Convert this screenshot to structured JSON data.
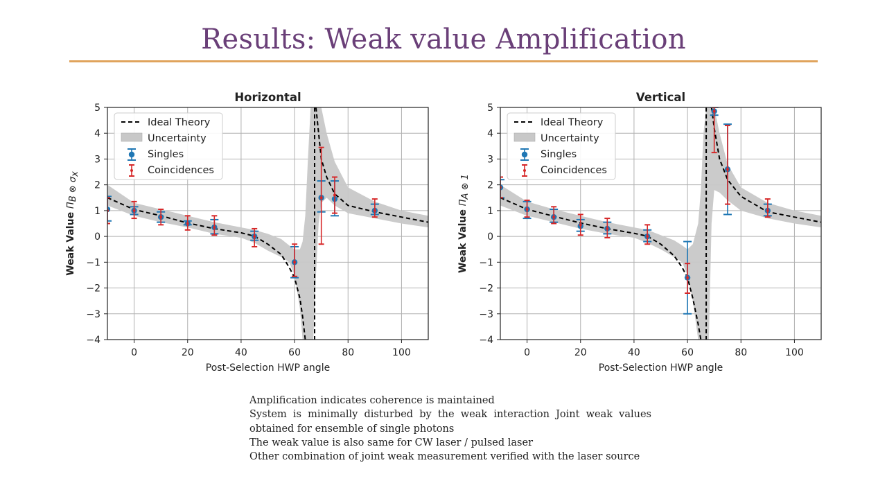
{
  "slide": {
    "title": "Results: Weak value Amplification",
    "notes": [
      "Amplification indicates coherence is maintained",
      "System is minimally disturbed by the weak interaction Joint weak values obtained for ensemble of single photons",
      "The weak value is also same for CW laser / pulsed laser",
      "Other combination of joint weak measurement verified with the laser source"
    ]
  },
  "colors": {
    "title": "#6a3f78",
    "rule": "#e0a35c",
    "singles": "#1f77b4",
    "coincidences": "#d62728",
    "theory": "#000000",
    "band": "#c8c8c8"
  },
  "chart_data": [
    {
      "type": "line",
      "title": "Horizontal",
      "xlabel": "Post-Selection HWP angle",
      "ylabel": "Weak Value",
      "ylabel_math": "Π_B ⊗ σ_x",
      "xlim": [
        -10,
        110
      ],
      "ylim": [
        -4,
        5
      ],
      "xticks": [
        0,
        20,
        40,
        60,
        80,
        100
      ],
      "yticks": [
        -4,
        -3,
        -2,
        -1,
        0,
        1,
        2,
        3,
        4,
        5
      ],
      "xtick_labels": [
        "0",
        "20",
        "40",
        "60",
        "80",
        "100"
      ],
      "ytick_labels": [
        "−4",
        "−3",
        "−2",
        "−1",
        "0",
        "1",
        "2",
        "3",
        "4",
        "5"
      ],
      "grid": true,
      "legend_position": "upper-left",
      "legend": [
        "Ideal Theory",
        "Uncertainty",
        "Singles",
        "Coincidences"
      ],
      "theory": {
        "x": [
          -10,
          0,
          10,
          20,
          30,
          40,
          45,
          50,
          55,
          58,
          60,
          62,
          63,
          64,
          65,
          66,
          67,
          68,
          69,
          70,
          72,
          75,
          80,
          90,
          100,
          110
        ],
        "y": [
          1.5,
          1.04,
          0.8,
          0.52,
          0.3,
          0.14,
          0.01,
          -0.3,
          -0.7,
          -1.2,
          -1.6,
          -2.4,
          -3.1,
          -4.0,
          null,
          null,
          null,
          5.0,
          4.0,
          3.0,
          2.3,
          1.65,
          1.2,
          0.95,
          0.75,
          0.55
        ]
      },
      "band_upper": [
        2.0,
        1.3,
        1.05,
        0.8,
        0.55,
        0.35,
        0.25,
        0.1,
        -0.1,
        -0.35,
        -0.5,
        -0.5,
        -0.2,
        0.8,
        3.0,
        5.0,
        5.0,
        5.0,
        5.0,
        5.0,
        4.0,
        2.9,
        1.9,
        1.35,
        1.0,
        0.8
      ],
      "band_lower": [
        1.2,
        0.8,
        0.55,
        0.35,
        0.1,
        -0.05,
        -0.25,
        -0.55,
        -0.8,
        -1.0,
        -1.5,
        -2.8,
        -4.0,
        -4.0,
        -4.0,
        -4.0,
        -4.0,
        -1.5,
        0.5,
        1.3,
        1.5,
        1.2,
        0.9,
        0.7,
        0.5,
        0.35
      ],
      "singles": [
        {
          "x": -10,
          "y": 1.05,
          "lo": 0.6,
          "hi": 1.55
        },
        {
          "x": 0,
          "y": 1.0,
          "lo": 0.85,
          "hi": 1.15
        },
        {
          "x": 10,
          "y": 0.75,
          "lo": 0.55,
          "hi": 0.95
        },
        {
          "x": 20,
          "y": 0.5,
          "lo": 0.45,
          "hi": 0.6
        },
        {
          "x": 30,
          "y": 0.35,
          "lo": 0.1,
          "hi": 0.65
        },
        {
          "x": 45,
          "y": 0.0,
          "lo": -0.15,
          "hi": 0.2
        },
        {
          "x": 60,
          "y": -1.0,
          "lo": -1.6,
          "hi": -0.4
        },
        {
          "x": 70,
          "y": 1.5,
          "lo": 0.95,
          "hi": 2.15
        },
        {
          "x": 75,
          "y": 1.45,
          "lo": 0.8,
          "hi": 2.15
        },
        {
          "x": 90,
          "y": 1.0,
          "lo": 0.85,
          "hi": 1.25
        }
      ],
      "coincidences": [
        {
          "x": -10,
          "y": 1.0,
          "lo": 0.5,
          "hi": 1.5
        },
        {
          "x": 0,
          "y": 1.0,
          "lo": 0.7,
          "hi": 1.35
        },
        {
          "x": 10,
          "y": 0.75,
          "lo": 0.45,
          "hi": 1.05
        },
        {
          "x": 20,
          "y": 0.5,
          "lo": 0.25,
          "hi": 0.8
        },
        {
          "x": 30,
          "y": 0.35,
          "lo": 0.05,
          "hi": 0.8
        },
        {
          "x": 45,
          "y": 0.0,
          "lo": -0.4,
          "hi": 0.3
        },
        {
          "x": 60,
          "y": -1.0,
          "lo": -1.55,
          "hi": -0.3
        },
        {
          "x": 70,
          "y": 1.5,
          "lo": -0.3,
          "hi": 3.45
        },
        {
          "x": 75,
          "y": 1.6,
          "lo": 0.9,
          "hi": 2.3
        },
        {
          "x": 90,
          "y": 1.0,
          "lo": 0.75,
          "hi": 1.45
        }
      ]
    },
    {
      "type": "line",
      "title": "Vertical",
      "xlabel": "Post-Selection HWP angle",
      "ylabel": "Weak Value",
      "ylabel_math": "Π_A ⊗ 1",
      "xlim": [
        -10,
        110
      ],
      "ylim": [
        -4,
        5
      ],
      "xticks": [
        0,
        20,
        40,
        60,
        80,
        100
      ],
      "yticks": [
        -4,
        -3,
        -2,
        -1,
        0,
        1,
        2,
        3,
        4,
        5
      ],
      "xtick_labels": [
        "0",
        "20",
        "40",
        "60",
        "80",
        "100"
      ],
      "ytick_labels": [
        "−4",
        "−3",
        "−2",
        "−1",
        "0",
        "1",
        "2",
        "3",
        "4",
        "5"
      ],
      "grid": true,
      "legend_position": "upper-left",
      "legend": [
        "Ideal Theory",
        "Uncertainty",
        "Singles",
        "Coincidences"
      ],
      "theory": {
        "x": [
          -10,
          0,
          10,
          20,
          30,
          40,
          45,
          50,
          55,
          58,
          60,
          62,
          64,
          65,
          66,
          67,
          68,
          69,
          70,
          72,
          75,
          80,
          90,
          100,
          110
        ],
        "y": [
          1.5,
          1.05,
          0.78,
          0.52,
          0.3,
          0.12,
          0.01,
          -0.3,
          -0.75,
          -1.2,
          -1.6,
          -2.4,
          -3.4,
          -4.0,
          null,
          null,
          null,
          5.0,
          4.2,
          3.0,
          2.2,
          1.55,
          0.95,
          0.75,
          0.55
        ]
      },
      "band_upper": [
        2.0,
        1.35,
        1.05,
        0.8,
        0.55,
        0.35,
        0.25,
        0.05,
        -0.15,
        -0.35,
        -0.5,
        -0.3,
        0.5,
        1.8,
        4.0,
        5.0,
        5.0,
        5.0,
        5.0,
        4.0,
        2.8,
        1.9,
        1.3,
        1.0,
        0.8
      ],
      "band_lower": [
        1.2,
        0.8,
        0.55,
        0.3,
        0.1,
        -0.05,
        -0.25,
        -0.5,
        -0.8,
        -1.0,
        -1.5,
        -2.5,
        -4.0,
        -4.0,
        -4.0,
        -4.0,
        -4.0,
        0.5,
        1.8,
        1.7,
        1.4,
        1.0,
        0.7,
        0.5,
        0.35
      ],
      "singles": [
        {
          "x": -10,
          "y": 1.9,
          "lo": 1.5,
          "hi": 2.2
        },
        {
          "x": 0,
          "y": 1.05,
          "lo": 0.7,
          "hi": 1.35
        },
        {
          "x": 10,
          "y": 0.75,
          "lo": 0.55,
          "hi": 1.05
        },
        {
          "x": 20,
          "y": 0.4,
          "lo": 0.2,
          "hi": 0.65
        },
        {
          "x": 30,
          "y": 0.3,
          "lo": 0.1,
          "hi": 0.55
        },
        {
          "x": 45,
          "y": 0.0,
          "lo": -0.2,
          "hi": 0.25
        },
        {
          "x": 60,
          "y": -1.6,
          "lo": -3.0,
          "hi": -0.2
        },
        {
          "x": 70,
          "y": 4.85,
          "lo": 4.7,
          "hi": 5.0
        },
        {
          "x": 75,
          "y": 2.6,
          "lo": 0.85,
          "hi": 4.35
        },
        {
          "x": 90,
          "y": 1.0,
          "lo": 0.8,
          "hi": 1.25
        }
      ],
      "coincidences": [
        {
          "x": -10,
          "y": 1.9,
          "lo": 1.5,
          "hi": 2.3
        },
        {
          "x": 0,
          "y": 1.05,
          "lo": 0.75,
          "hi": 1.4
        },
        {
          "x": 10,
          "y": 0.75,
          "lo": 0.5,
          "hi": 1.15
        },
        {
          "x": 20,
          "y": 0.45,
          "lo": 0.05,
          "hi": 0.85
        },
        {
          "x": 30,
          "y": 0.3,
          "lo": -0.05,
          "hi": 0.7
        },
        {
          "x": 45,
          "y": 0.0,
          "lo": -0.3,
          "hi": 0.45
        },
        {
          "x": 60,
          "y": -1.6,
          "lo": -2.2,
          "hi": -1.05
        },
        {
          "x": 70,
          "y": 4.85,
          "lo": 3.25,
          "hi": 5.0
        },
        {
          "x": 75,
          "y": 2.6,
          "lo": 1.25,
          "hi": 4.3
        },
        {
          "x": 90,
          "y": 1.0,
          "lo": 0.75,
          "hi": 1.45
        }
      ]
    }
  ]
}
